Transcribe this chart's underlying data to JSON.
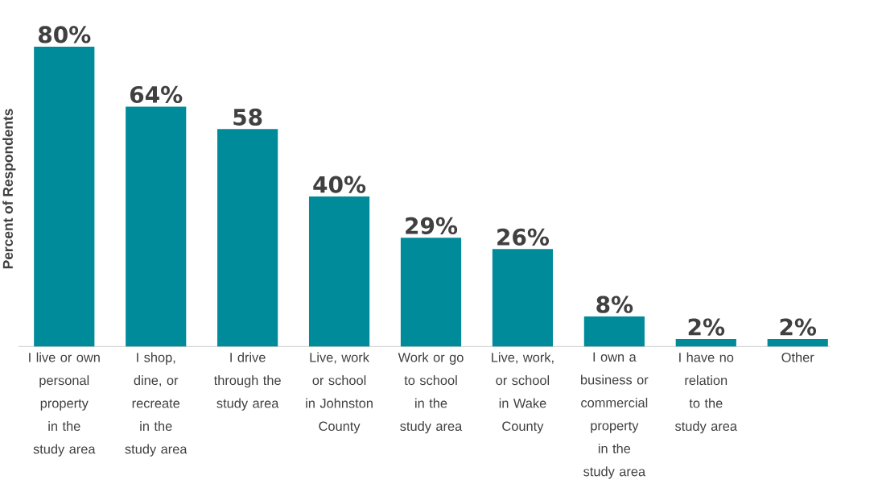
{
  "chart_data": {
    "type": "bar",
    "ylabel": "Percent of Respondents",
    "categories": [
      "I live or own personal property in the study area",
      "I shop, dine, or recreate in the study area",
      "I drive through the study area",
      "Live, work or school in Johnston County",
      "Work or go to school in the study area",
      "Live, work, or school in Wake County",
      "I own a business or commercial property in the study area",
      "I have no relation to the study area",
      "Other"
    ],
    "values": [
      80,
      64,
      58,
      40,
      29,
      26,
      8,
      2,
      2
    ],
    "value_labels": [
      "80%",
      "64%",
      "58",
      "40%",
      "29%",
      "26%",
      "8%",
      "2%",
      "2%"
    ],
    "color": "#008b9a"
  }
}
